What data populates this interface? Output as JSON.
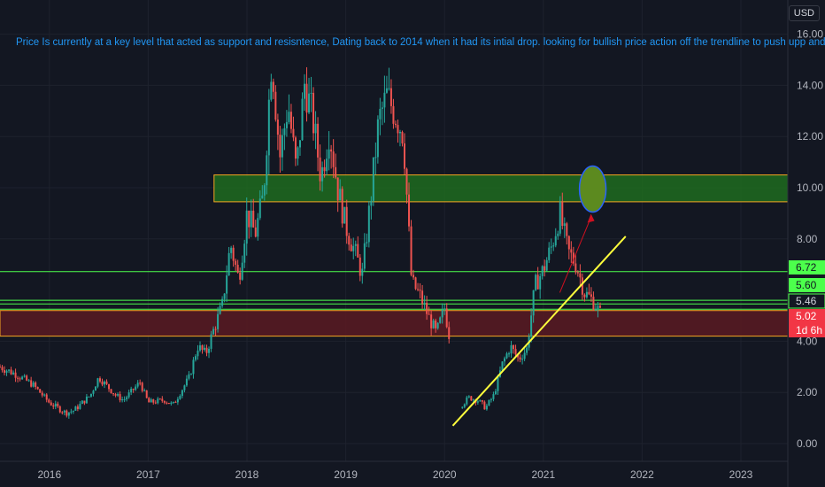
{
  "currency": "USD",
  "annotation": "Price Is currently at a key level that acted as support and resisntence, Dating back to 2014 when it had its intial drop. looking for bullish price action off the trendline to push upp and break $",
  "colors": {
    "background": "#131722",
    "up": "#26a69a",
    "down": "#ef5350",
    "green_zone_fill": "#1f6b1f",
    "red_zone_fill": "#5a1a22",
    "zone_border": "#f5a623",
    "level_line": "#4cff4c",
    "trendline": "#ffff3c",
    "target_fill": "#5c8a1f",
    "target_border": "#2962ff",
    "arrow": "#d01020",
    "grid": "#1e222d"
  },
  "axis_labels": {
    "y_ticks": [
      "16.00",
      "14.00",
      "12.00",
      "10.00",
      "8.00",
      "4.00",
      "2.00",
      "0.00"
    ],
    "x_ticks": [
      "2016",
      "2017",
      "2018",
      "2019",
      "2020",
      "2021",
      "2022",
      "2023"
    ]
  },
  "price_badges": [
    {
      "text": "6.72",
      "kind": "green"
    },
    {
      "text": "5.60",
      "kind": "green"
    },
    {
      "text": "5.46",
      "kind": "dark"
    },
    {
      "text": "5.02",
      "kind": "red"
    },
    {
      "text": "1d 6h",
      "kind": "red"
    }
  ],
  "chart_data": {
    "type": "candlestick",
    "x_range": [
      "2015-07",
      "2023-07"
    ],
    "ylim": [
      -0.4,
      16.5
    ],
    "y_ticks": [
      16,
      14,
      12,
      10,
      8,
      4,
      2,
      0
    ],
    "grid": true,
    "zones": [
      {
        "name": "resistance-zone",
        "from": "2017-09",
        "to": "2023-07",
        "low": 9.45,
        "high": 10.5,
        "color": "green"
      },
      {
        "name": "support-zone",
        "from": "2015-07",
        "to": "2023-07",
        "low": 4.2,
        "high": 5.2,
        "color": "red"
      }
    ],
    "horizontal_levels": [
      6.72,
      5.6,
      5.46,
      5.25
    ],
    "trendline": {
      "from": [
        "2020-02",
        0.7
      ],
      "to": [
        "2021-11",
        8.1
      ]
    },
    "target": {
      "x": "2021-07",
      "y": 9.95
    },
    "arrow": {
      "from": [
        "2021-03",
        5.9
      ],
      "to": [
        "2021-07",
        9.05
      ]
    },
    "last_price": 5.02,
    "price_path": [
      [
        "2015-07",
        3.0
      ],
      [
        "2015-09",
        2.7
      ],
      [
        "2015-11",
        2.3
      ],
      [
        "2016-01",
        1.6
      ],
      [
        "2016-03",
        1.2
      ],
      [
        "2016-04",
        1.3
      ],
      [
        "2016-06",
        1.9
      ],
      [
        "2016-07",
        2.6
      ],
      [
        "2016-09",
        1.9
      ],
      [
        "2016-10",
        1.7
      ],
      [
        "2016-12",
        2.4
      ],
      [
        "2017-01",
        1.6
      ],
      [
        "2017-03",
        1.7
      ],
      [
        "2017-04",
        1.5
      ],
      [
        "2017-06",
        2.6
      ],
      [
        "2017-07",
        3.8
      ],
      [
        "2017-08",
        3.5
      ],
      [
        "2017-09",
        4.5
      ],
      [
        "2017-10",
        5.4
      ],
      [
        "2017-11",
        7.8
      ],
      [
        "2017-12",
        6.4
      ],
      [
        "2018-01",
        9.0
      ],
      [
        "2018-02",
        8.2
      ],
      [
        "2018-03",
        9.7
      ],
      [
        "2018-04",
        15.2
      ],
      [
        "2018-05",
        11.2
      ],
      [
        "2018-06",
        13.3
      ],
      [
        "2018-07",
        10.6
      ],
      [
        "2018-08",
        14.1
      ],
      [
        "2018-09",
        12.7
      ],
      [
        "2018-10",
        10.4
      ],
      [
        "2018-11",
        12.3
      ],
      [
        "2018-12",
        10.0
      ],
      [
        "2019-01",
        8.5
      ],
      [
        "2019-02",
        7.6
      ],
      [
        "2019-03",
        6.6
      ],
      [
        "2019-04",
        9.5
      ],
      [
        "2019-05",
        12.6
      ],
      [
        "2019-06",
        13.6
      ],
      [
        "2019-07",
        12.9
      ],
      [
        "2019-08",
        12.1
      ],
      [
        "2019-09",
        6.3
      ],
      [
        "2019-10",
        5.8
      ],
      [
        "2019-11",
        5.0
      ],
      [
        "2019-12",
        4.3
      ],
      [
        "2020-01",
        5.3
      ],
      [
        "2020-03",
        1.5
      ],
      [
        "2020-04",
        1.8
      ],
      [
        "2020-05",
        1.7
      ],
      [
        "2020-06",
        1.4
      ],
      [
        "2020-07",
        1.9
      ],
      [
        "2020-08",
        3.1
      ],
      [
        "2020-09",
        3.8
      ],
      [
        "2020-10",
        3.3
      ],
      [
        "2020-11",
        3.7
      ],
      [
        "2020-12",
        6.2
      ],
      [
        "2021-01",
        6.8
      ],
      [
        "2021-02",
        7.7
      ],
      [
        "2021-03",
        9.0
      ],
      [
        "2021-04",
        7.5
      ],
      [
        "2021-05",
        7.0
      ],
      [
        "2021-06",
        5.9
      ],
      [
        "2021-07",
        5.6
      ],
      [
        "2021-08",
        5.02
      ]
    ]
  }
}
